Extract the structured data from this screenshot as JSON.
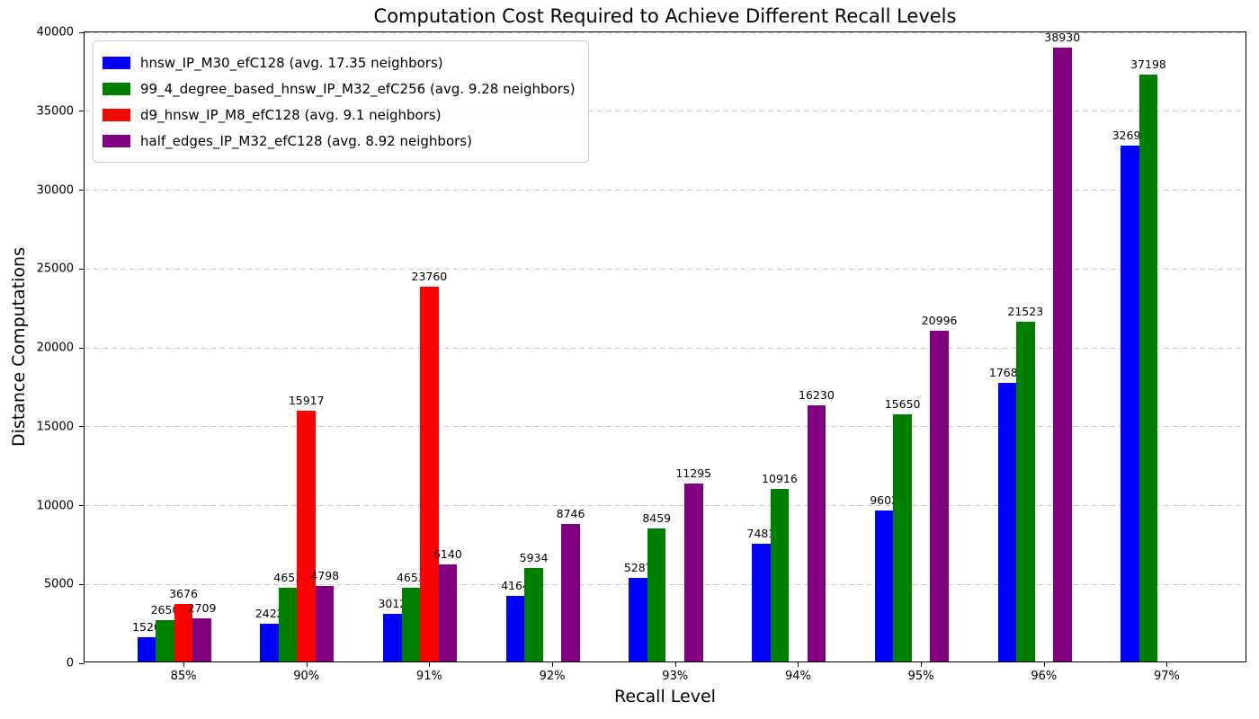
{
  "chart_data": {
    "type": "bar",
    "title": "Computation Cost Required to Achieve Different Recall Levels",
    "xlabel": "Recall Level",
    "ylabel": "Distance Computations",
    "categories": [
      "85%",
      "90%",
      "91%",
      "92%",
      "93%",
      "94%",
      "95%",
      "96%",
      "97%"
    ],
    "series": [
      {
        "name": "hnsw_IP_M30_efC128 (avg. 17.35 neighbors)",
        "color": "#0000ff",
        "values": [
          1520,
          2422,
          3012,
          4164,
          5287,
          7481,
          9602,
          17689,
          32692
        ]
      },
      {
        "name": "99_4_degree_based_hnsw_IP_M32_efC256 (avg. 9.28 neighbors)",
        "color": "#008000",
        "values": [
          2650,
          4653,
          4653,
          5934,
          8459,
          10916,
          15650,
          21523,
          37198
        ]
      },
      {
        "name": "d9_hnsw_IP_M8_efC128 (avg. 9.1 neighbors)",
        "color": "#ff0000",
        "values": [
          3676,
          15917,
          23760,
          null,
          null,
          null,
          null,
          null,
          null
        ]
      },
      {
        "name": "half_edges_IP_M32_efC128 (avg. 8.92 neighbors)",
        "color": "#800080",
        "values": [
          2709,
          4798,
          6140,
          8746,
          11295,
          16230,
          20996,
          38930,
          null
        ]
      }
    ],
    "ylim": [
      0,
      40000
    ],
    "yticks": [
      0,
      5000,
      10000,
      15000,
      20000,
      25000,
      30000,
      35000,
      40000
    ],
    "grid": true,
    "grid_style": "dashed",
    "legend_position": "upper-left",
    "bar_value_labels": true
  }
}
